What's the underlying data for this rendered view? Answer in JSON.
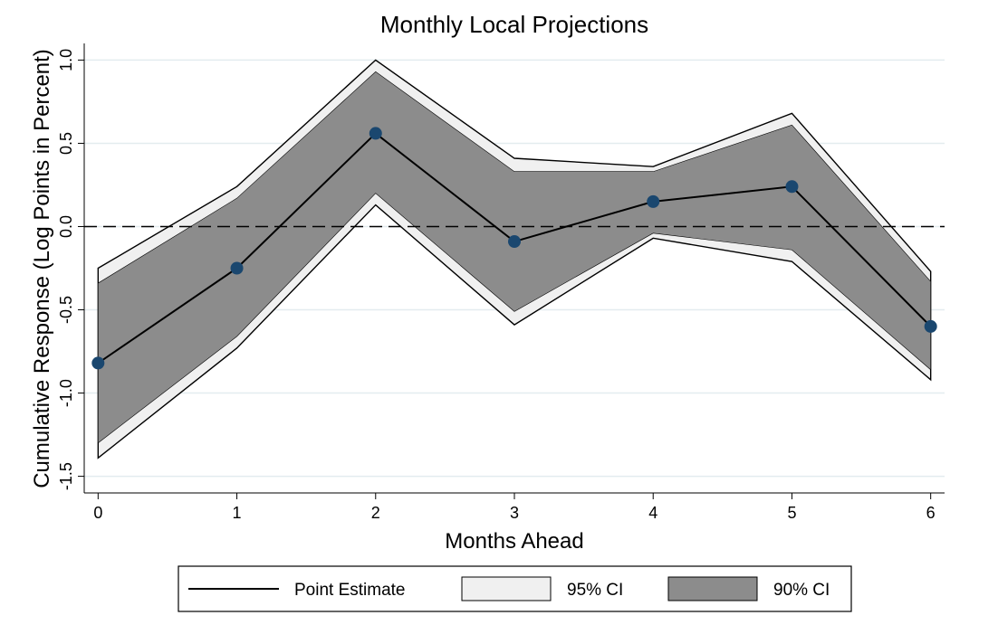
{
  "chart_data": {
    "type": "line-band",
    "title": "Monthly Local Projections",
    "x_label": "Months Ahead",
    "y_label": "Cumulative Response (Log Points in Percent)",
    "x": [
      0,
      1,
      2,
      3,
      4,
      5,
      6
    ],
    "xlim": [
      -0.1,
      6.1
    ],
    "xticks": [
      0,
      1,
      2,
      3,
      4,
      5,
      6
    ],
    "ylim": [
      -1.6,
      1.1
    ],
    "yticks": [
      {
        "value": -1.5,
        "label": "-1.5"
      },
      {
        "value": -1,
        "label": "-1.0"
      },
      {
        "value": -0.5,
        "label": "-0.5"
      },
      {
        "value": 0,
        "label": "0.0"
      },
      {
        "value": 0.5,
        "label": "0.5"
      },
      {
        "value": 1,
        "label": "1.0"
      }
    ],
    "grid": true,
    "reference_line": 0,
    "legend": "bottom",
    "series": [
      {
        "name": "Point Estimate",
        "color": "#000000",
        "marker_color": "#1a476f",
        "values": [
          -0.82,
          -0.25,
          0.56,
          -0.09,
          0.15,
          0.24,
          -0.6
        ]
      }
    ],
    "bands": [
      {
        "name": "95% CI",
        "color": "#f0f0f0",
        "lower": [
          -1.39,
          -0.73,
          0.13,
          -0.59,
          -0.07,
          -0.21,
          -0.92
        ],
        "upper": [
          -0.25,
          0.24,
          1.0,
          0.41,
          0.36,
          0.68,
          -0.27
        ]
      },
      {
        "name": "90% CI",
        "color": "#8c8c8c",
        "lower": [
          -1.3,
          -0.66,
          0.2,
          -0.51,
          -0.04,
          -0.14,
          -0.86
        ],
        "upper": [
          -0.34,
          0.17,
          0.93,
          0.33,
          0.33,
          0.61,
          -0.33
        ]
      }
    ]
  }
}
